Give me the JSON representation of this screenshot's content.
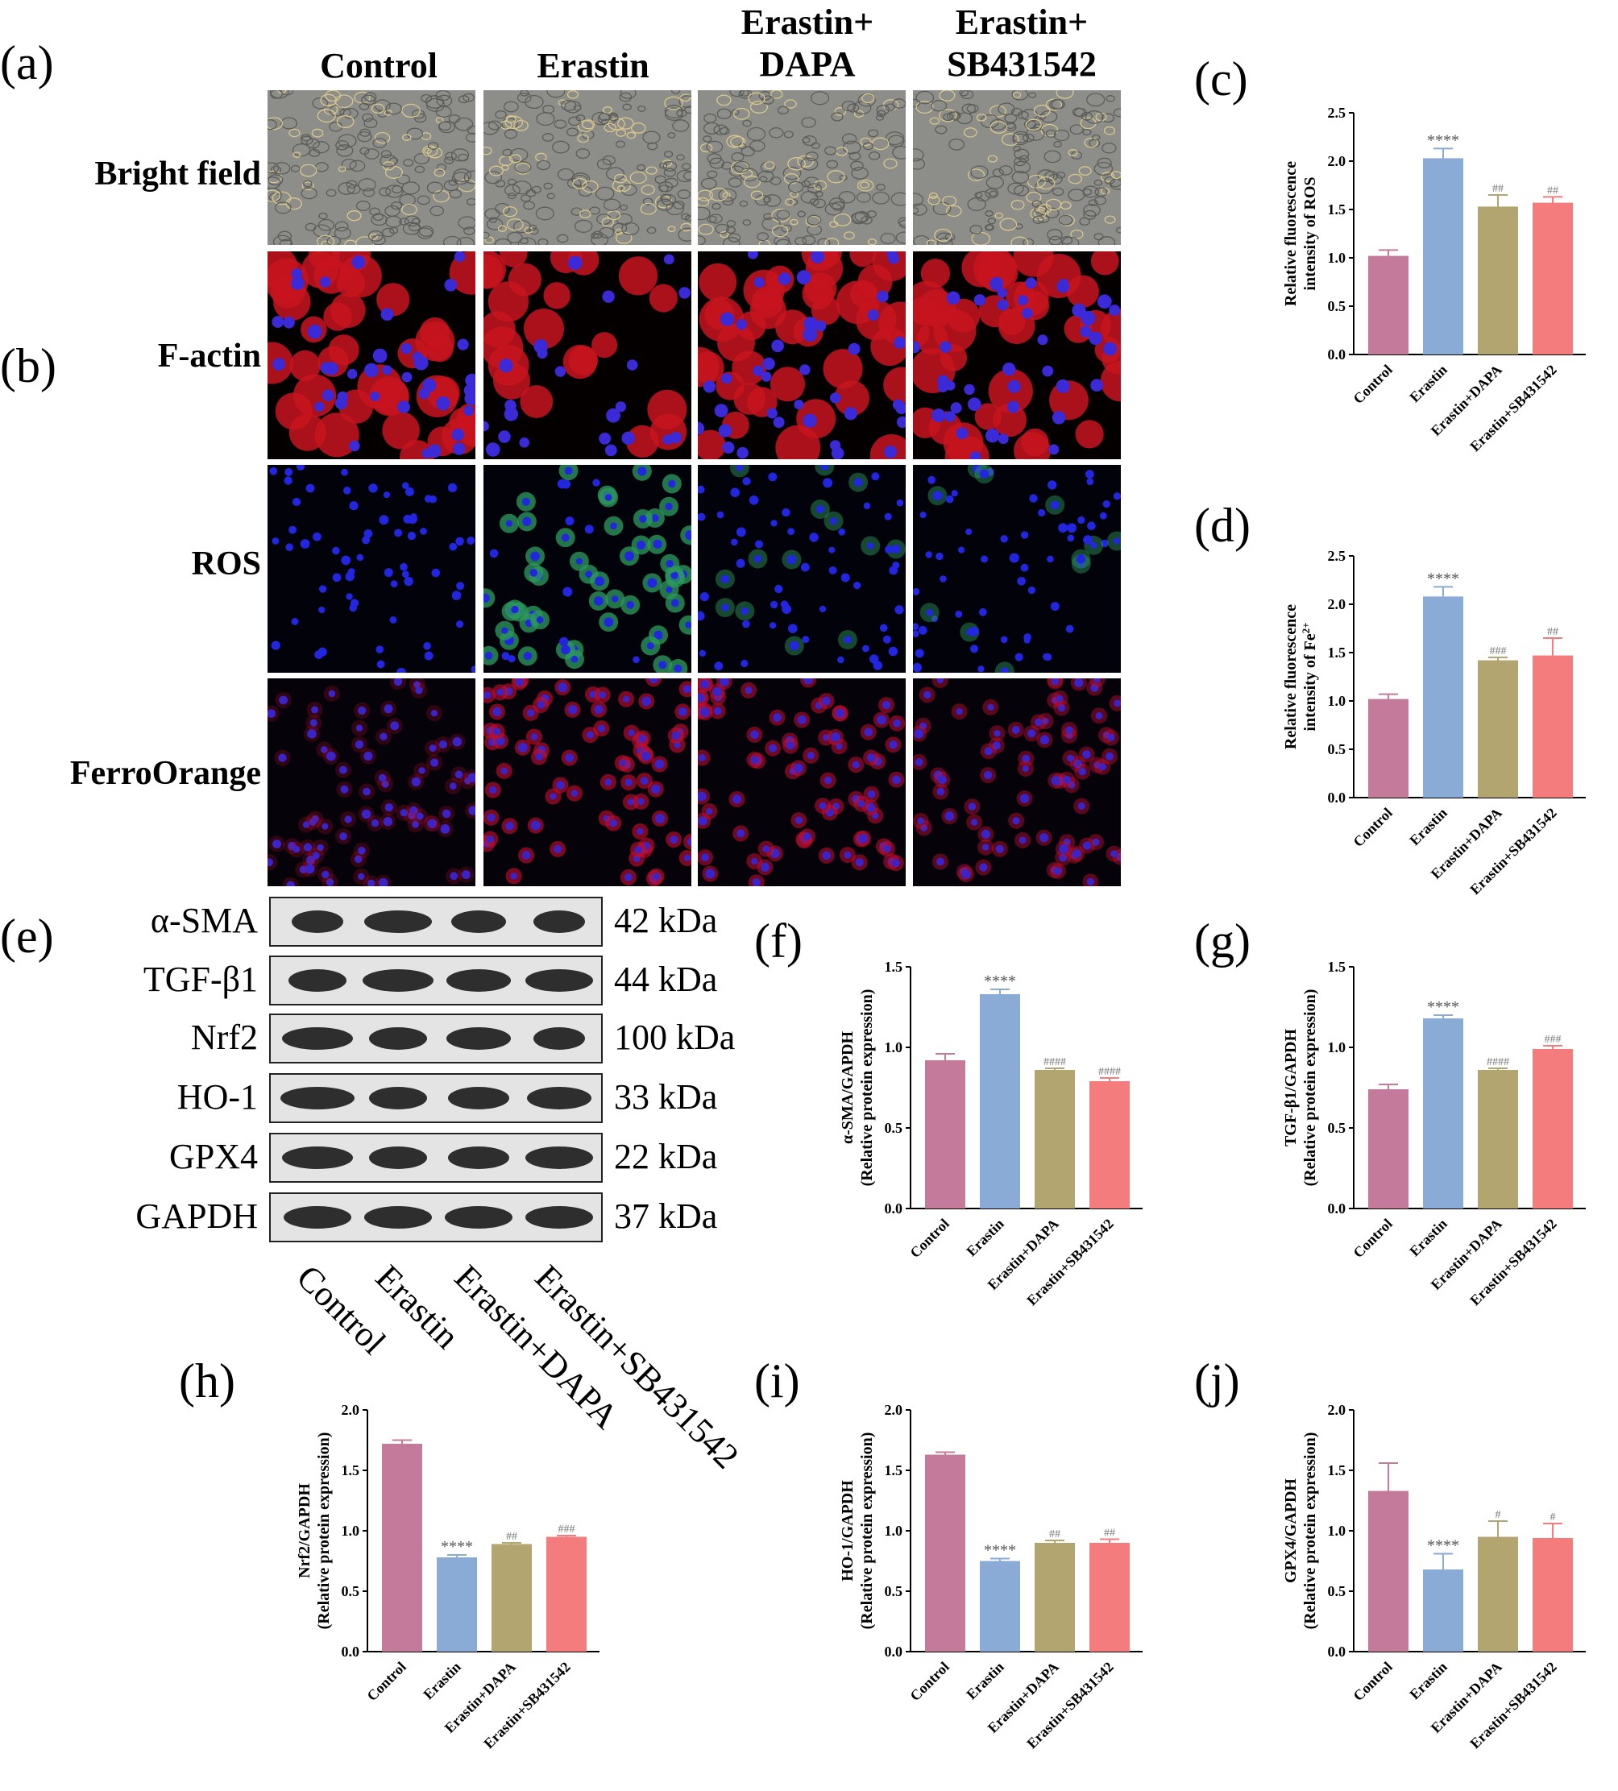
{
  "panel_labels": {
    "a": "(a)",
    "b": "(b)",
    "c": "(c)",
    "d": "(d)",
    "e": "(e)",
    "f": "(f)",
    "g": "(g)",
    "h": "(h)",
    "i": "(i)",
    "j": "(j)"
  },
  "micro_columns": [
    {
      "line1": "Control",
      "line2": ""
    },
    {
      "line1": "Erastin",
      "line2": ""
    },
    {
      "line1": "Erastin+",
      "line2": "DAPA"
    },
    {
      "line1": "Erastin+",
      "line2": "SB431542"
    }
  ],
  "micro_rows": [
    "Bright field",
    "F-actin",
    "ROS",
    "FerroOrange"
  ],
  "colors": {
    "control": "#c47b9b",
    "erastin": "#8aabd6",
    "dapa": "#b3a56f",
    "sb": "#f47c7c"
  },
  "western": {
    "bands": [
      {
        "label": "α-SMA",
        "kda": "42 kDa"
      },
      {
        "label": "TGF-β1",
        "kda": "44 kDa"
      },
      {
        "label": "Nrf2",
        "kda": "100 kDa"
      },
      {
        "label": "HO-1",
        "kda": "33 kDa"
      },
      {
        "label": "GPX4",
        "kda": "22 kDa"
      },
      {
        "label": "GAPDH",
        "kda": "37 kDa"
      }
    ],
    "lanes": [
      "Control",
      "Erastin",
      "Erastin+DAPA",
      "Erastin+SB431542"
    ]
  },
  "chart_data": [
    {
      "id": "c",
      "type": "bar",
      "categories": [
        "Control",
        "Erastin",
        "Erastin+DAPA",
        "Erastin+SB431542"
      ],
      "values": [
        1.02,
        2.03,
        1.53,
        1.57
      ],
      "errors": [
        0.06,
        0.1,
        0.12,
        0.06
      ],
      "sig": [
        "",
        "****",
        "##",
        "##"
      ],
      "ylabel": [
        "Relative fluorescence",
        "intensity of ROS"
      ],
      "ylim": [
        0,
        2.5
      ],
      "ticks": [
        "0.0",
        "0.5",
        "1.0",
        "1.5",
        "2.0",
        "2.5"
      ]
    },
    {
      "id": "d",
      "type": "bar",
      "categories": [
        "Control",
        "Erastin",
        "Erastin+DAPA",
        "Erastin+SB431542"
      ],
      "values": [
        1.02,
        2.08,
        1.42,
        1.47
      ],
      "errors": [
        0.05,
        0.1,
        0.03,
        0.18
      ],
      "sig": [
        "",
        "****",
        "###",
        "##"
      ],
      "ylabel": [
        "Relative fluorescence",
        "intensity of Fe2+"
      ],
      "ylim": [
        0,
        2.5
      ],
      "ticks": [
        "0.0",
        "0.5",
        "1.0",
        "1.5",
        "2.0",
        "2.5"
      ]
    },
    {
      "id": "f",
      "type": "bar",
      "categories": [
        "Control",
        "Erastin",
        "Erastin+DAPA",
        "Erastin+SB431542"
      ],
      "values": [
        0.92,
        1.33,
        0.86,
        0.79
      ],
      "errors": [
        0.04,
        0.03,
        0.01,
        0.02
      ],
      "sig": [
        "",
        "****",
        "####",
        "####"
      ],
      "ylabel": [
        "α-SMA/GAPDH",
        "(Relative protein expression)"
      ],
      "ylim": [
        0,
        1.5
      ],
      "ticks": [
        "0.0",
        "0.5",
        "1.0",
        "1.5"
      ]
    },
    {
      "id": "g",
      "type": "bar",
      "categories": [
        "Control",
        "Erastin",
        "Erastin+DAPA",
        "Erastin+SB431542"
      ],
      "values": [
        0.74,
        1.18,
        0.86,
        0.99
      ],
      "errors": [
        0.03,
        0.02,
        0.01,
        0.02
      ],
      "sig": [
        "",
        "****",
        "####",
        "###"
      ],
      "ylabel": [
        "TGF-β1/GAPDH",
        "(Relative protein expression)"
      ],
      "ylim": [
        0,
        1.5
      ],
      "ticks": [
        "0.0",
        "0.5",
        "1.0",
        "1.5"
      ]
    },
    {
      "id": "h",
      "type": "bar",
      "categories": [
        "Control",
        "Erastin",
        "Erastin+DAPA",
        "Erastin+SB431542"
      ],
      "values": [
        1.72,
        0.78,
        0.89,
        0.95
      ],
      "errors": [
        0.03,
        0.02,
        0.01,
        0.01
      ],
      "sig": [
        "",
        "****",
        "##",
        "###"
      ],
      "ylabel": [
        "Nrf2/GAPDH",
        "(Relative protein expression)"
      ],
      "ylim": [
        0,
        2.0
      ],
      "ticks": [
        "0.0",
        "0.5",
        "1.0",
        "1.5",
        "2.0"
      ]
    },
    {
      "id": "i",
      "type": "bar",
      "categories": [
        "Control",
        "Erastin",
        "Erastin+DAPA",
        "Erastin+SB431542"
      ],
      "values": [
        1.63,
        0.75,
        0.9,
        0.9
      ],
      "errors": [
        0.02,
        0.02,
        0.02,
        0.03
      ],
      "sig": [
        "",
        "****",
        "##",
        "##"
      ],
      "ylabel": [
        "HO-1/GAPDH",
        "(Relative protein expression)"
      ],
      "ylim": [
        0,
        2.0
      ],
      "ticks": [
        "0.0",
        "0.5",
        "1.0",
        "1.5",
        "2.0"
      ]
    },
    {
      "id": "j",
      "type": "bar",
      "categories": [
        "Control",
        "Erastin",
        "Erastin+DAPA",
        "Erastin+SB431542"
      ],
      "values": [
        1.33,
        0.68,
        0.95,
        0.94
      ],
      "errors": [
        0.23,
        0.13,
        0.13,
        0.12
      ],
      "sig": [
        "",
        "****",
        "#",
        "#"
      ],
      "ylabel": [
        "GPX4/GAPDH",
        "(Relative protein expression)"
      ],
      "ylim": [
        0,
        2.0
      ],
      "ticks": [
        "0.0",
        "0.5",
        "1.0",
        "1.5",
        "2.0"
      ]
    }
  ]
}
